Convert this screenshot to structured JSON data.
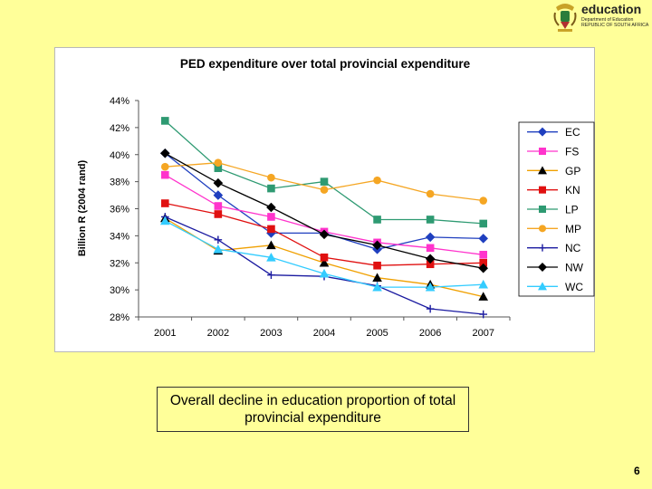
{
  "logo": {
    "brand": "education",
    "dept_line1": "Department of Education",
    "dept_line2": "REPUBLIC OF SOUTH AFRICA"
  },
  "caption": "Overall decline in education proportion of total provincial expenditure",
  "page_number": "6",
  "chart_data": {
    "type": "line",
    "title": "PED expenditure over total provincial expenditure",
    "xlabel": "",
    "ylabel": "Billion R (2004 rand)",
    "ylim": [
      0.28,
      0.44
    ],
    "yticks": [
      "44%",
      "42%",
      "40%",
      "38%",
      "36%",
      "34%",
      "32%",
      "30%",
      "28%"
    ],
    "ytick_values": [
      0.44,
      0.42,
      0.4,
      0.38,
      0.36,
      0.34,
      0.32,
      0.3,
      0.28
    ],
    "categories": [
      "2001",
      "2002",
      "2003",
      "2004",
      "2005",
      "2006",
      "2007"
    ],
    "legend_position": "right",
    "grid": false,
    "series": [
      {
        "name": "EC",
        "color": "#1f3fbf",
        "marker": "diamond",
        "values": [
          0.401,
          0.37,
          0.342,
          0.342,
          0.33,
          0.339,
          0.338
        ]
      },
      {
        "name": "FS",
        "color": "#ff33cc",
        "marker": "square",
        "values": [
          0.385,
          0.362,
          0.354,
          0.343,
          0.335,
          0.331,
          0.326
        ]
      },
      {
        "name": "GP",
        "color": "#000000",
        "line_color": "#f0a000",
        "marker": "triangle",
        "values": [
          0.353,
          0.329,
          0.333,
          0.32,
          0.309,
          0.304,
          0.295
        ]
      },
      {
        "name": "KN",
        "color": "#e01010",
        "marker": "square",
        "values": [
          0.364,
          0.356,
          0.345,
          0.324,
          0.318,
          0.319,
          0.32
        ]
      },
      {
        "name": "LP",
        "color": "#2e9a72",
        "marker": "square",
        "values": [
          0.425,
          0.39,
          0.375,
          0.38,
          0.352,
          0.352,
          0.349
        ]
      },
      {
        "name": "MP",
        "color": "#f5a623",
        "marker": "circle",
        "values": [
          0.391,
          0.394,
          0.383,
          0.374,
          0.381,
          0.371,
          0.366
        ]
      },
      {
        "name": "NC",
        "color": "#1a1aa0",
        "marker": "plus",
        "values": [
          0.354,
          0.337,
          0.311,
          0.31,
          0.303,
          0.286,
          0.282
        ]
      },
      {
        "name": "NW",
        "color": "#000000",
        "marker": "diamond",
        "values": [
          0.401,
          0.379,
          0.361,
          0.341,
          0.333,
          0.323,
          0.316
        ]
      },
      {
        "name": "WC",
        "color": "#33ccff",
        "marker": "triangle",
        "values": [
          0.351,
          0.33,
          0.324,
          0.312,
          0.302,
          0.302,
          0.304
        ]
      }
    ]
  }
}
